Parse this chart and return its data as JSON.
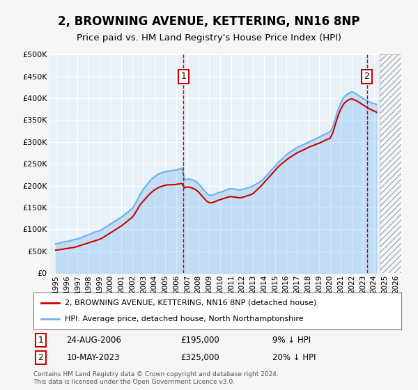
{
  "title": "2, BROWNING AVENUE, KETTERING, NN16 8NP",
  "subtitle": "Price paid vs. HM Land Registry's House Price Index (HPI)",
  "legend_line1": "2, BROWNING AVENUE, KETTERING, NN16 8NP (detached house)",
  "legend_line2": "HPI: Average price, detached house, North Northamptonshire",
  "footer1": "Contains HM Land Registry data © Crown copyright and database right 2024.",
  "footer2": "This data is licensed under the Open Government Licence v3.0.",
  "annotation1_label": "1",
  "annotation1_date": "24-AUG-2006",
  "annotation1_price": "£195,000",
  "annotation1_hpi": "9% ↓ HPI",
  "annotation2_label": "2",
  "annotation2_date": "10-MAY-2023",
  "annotation2_price": "£325,000",
  "annotation2_hpi": "20% ↓ HPI",
  "sale1_x": 2006.65,
  "sale1_y": 195000,
  "sale2_x": 2023.36,
  "sale2_y": 325000,
  "hpi_color": "#6ab4f0",
  "price_color": "#cc0000",
  "bg_plot": "#e8f0f8",
  "bg_figure": "#f5f5f5",
  "grid_color": "#ffffff",
  "ylim": [
    0,
    500000
  ],
  "xlim_start": 1994.5,
  "xlim_end": 2026.5,
  "hpi_years": [
    1995,
    1995.25,
    1995.5,
    1995.75,
    1996,
    1996.25,
    1996.5,
    1996.75,
    1997,
    1997.25,
    1997.5,
    1997.75,
    1998,
    1998.25,
    1998.5,
    1998.75,
    1999,
    1999.25,
    1999.5,
    1999.75,
    2000,
    2000.25,
    2000.5,
    2000.75,
    2001,
    2001.25,
    2001.5,
    2001.75,
    2002,
    2002.25,
    2002.5,
    2002.75,
    2003,
    2003.25,
    2003.5,
    2003.75,
    2004,
    2004.25,
    2004.5,
    2004.75,
    2005,
    2005.25,
    2005.5,
    2005.75,
    2006,
    2006.25,
    2006.5,
    2006.75,
    2007,
    2007.25,
    2007.5,
    2007.75,
    2008,
    2008.25,
    2008.5,
    2008.75,
    2009,
    2009.25,
    2009.5,
    2009.75,
    2010,
    2010.25,
    2010.5,
    2010.75,
    2011,
    2011.25,
    2011.5,
    2011.75,
    2012,
    2012.25,
    2012.5,
    2012.75,
    2013,
    2013.25,
    2013.5,
    2013.75,
    2014,
    2014.25,
    2014.5,
    2014.75,
    2015,
    2015.25,
    2015.5,
    2015.75,
    2016,
    2016.25,
    2016.5,
    2016.75,
    2017,
    2017.25,
    2017.5,
    2017.75,
    2018,
    2018.25,
    2018.5,
    2018.75,
    2019,
    2019.25,
    2019.5,
    2019.75,
    2020,
    2020.25,
    2020.5,
    2020.75,
    2021,
    2021.25,
    2021.5,
    2021.75,
    2022,
    2022.25,
    2022.5,
    2022.75,
    2023,
    2023.25,
    2023.5,
    2023.75,
    2024,
    2024.25
  ],
  "hpi_values": [
    67000,
    68000,
    69500,
    71000,
    72000,
    73500,
    75000,
    77000,
    78000,
    80000,
    83000,
    86000,
    88000,
    90000,
    93000,
    95000,
    97000,
    100000,
    104000,
    108000,
    112000,
    116000,
    120000,
    124000,
    128000,
    133000,
    138000,
    143000,
    148000,
    158000,
    170000,
    182000,
    192000,
    200000,
    208000,
    215000,
    220000,
    225000,
    228000,
    230000,
    232000,
    233000,
    234000,
    235000,
    236000,
    238000,
    240000,
    213000,
    215000,
    215000,
    213000,
    210000,
    205000,
    198000,
    190000,
    183000,
    178000,
    178000,
    180000,
    183000,
    185000,
    187000,
    190000,
    192000,
    193000,
    192000,
    191000,
    190000,
    191000,
    193000,
    195000,
    197000,
    200000,
    203000,
    207000,
    211000,
    217000,
    224000,
    231000,
    238000,
    245000,
    252000,
    258000,
    264000,
    270000,
    275000,
    279000,
    283000,
    287000,
    290000,
    293000,
    296000,
    299000,
    302000,
    305000,
    308000,
    311000,
    314000,
    317000,
    320000,
    323000,
    334000,
    355000,
    375000,
    390000,
    402000,
    408000,
    412000,
    415000,
    412000,
    408000,
    404000,
    400000,
    396000,
    393000,
    390000,
    388000,
    386000
  ],
  "price_years": [
    1995.0,
    1995.25,
    1995.5,
    1995.75,
    1996.0,
    1996.25,
    1996.5,
    1996.75,
    1997.0,
    1997.25,
    1997.5,
    1997.75,
    1998.0,
    1998.25,
    1998.5,
    1998.75,
    1999.0,
    1999.25,
    1999.5,
    1999.75,
    2000.0,
    2000.25,
    2000.5,
    2000.75,
    2001.0,
    2001.25,
    2001.5,
    2001.75,
    2002.0,
    2002.25,
    2002.5,
    2002.75,
    2003.0,
    2003.25,
    2003.5,
    2003.75,
    2004.0,
    2004.25,
    2004.5,
    2004.75,
    2005.0,
    2005.25,
    2005.5,
    2005.75,
    2006.0,
    2006.25,
    2006.5,
    2006.75,
    2007.0,
    2007.25,
    2007.5,
    2007.75,
    2008.0,
    2008.25,
    2008.5,
    2008.75,
    2009.0,
    2009.25,
    2009.5,
    2009.75,
    2010.0,
    2010.25,
    2010.5,
    2010.75,
    2011.0,
    2011.25,
    2011.5,
    2011.75,
    2012.0,
    2012.25,
    2012.5,
    2012.75,
    2013.0,
    2013.25,
    2013.5,
    2013.75,
    2014.0,
    2014.25,
    2014.5,
    2014.75,
    2015.0,
    2015.25,
    2015.5,
    2015.75,
    2016.0,
    2016.25,
    2016.5,
    2016.75,
    2017.0,
    2017.25,
    2017.5,
    2017.75,
    2018.0,
    2018.25,
    2018.5,
    2018.75,
    2019.0,
    2019.25,
    2019.5,
    2019.75,
    2020.0,
    2020.25,
    2020.5,
    2020.75,
    2021.0,
    2021.25,
    2021.5,
    2021.75,
    2022.0,
    2022.25,
    2022.5,
    2022.75,
    2023.0,
    2023.25,
    2023.5,
    2023.75,
    2024.0,
    2024.25
  ],
  "price_values": [
    52000,
    53000,
    54000,
    55000,
    56000,
    57000,
    58000,
    59000,
    61000,
    63000,
    65000,
    67000,
    69000,
    71000,
    73000,
    75000,
    77000,
    80000,
    84000,
    88000,
    92000,
    96000,
    100000,
    104000,
    108000,
    113000,
    118000,
    123000,
    128000,
    137000,
    148000,
    158000,
    165000,
    172000,
    179000,
    185000,
    190000,
    194000,
    197000,
    199000,
    201000,
    202000,
    202000,
    202000,
    203000,
    204000,
    205000,
    195000,
    197000,
    196000,
    194000,
    191000,
    186000,
    179000,
    172000,
    165000,
    161000,
    161000,
    163000,
    166000,
    168000,
    170000,
    172000,
    174000,
    175000,
    174000,
    173000,
    172000,
    173000,
    175000,
    177000,
    179000,
    182000,
    188000,
    194000,
    200000,
    207000,
    214000,
    221000,
    228000,
    235000,
    242000,
    248000,
    253000,
    258000,
    263000,
    267000,
    271000,
    275000,
    278000,
    281000,
    284000,
    287000,
    290000,
    292000,
    295000,
    297000,
    300000,
    303000,
    306000,
    308000,
    320000,
    341000,
    361000,
    376000,
    387000,
    393000,
    397000,
    399000,
    396000,
    393000,
    389000,
    385000,
    381000,
    377000,
    374000,
    371000,
    368000
  ],
  "xticks": [
    1995,
    1996,
    1997,
    1998,
    1999,
    2000,
    2001,
    2002,
    2003,
    2004,
    2005,
    2006,
    2007,
    2008,
    2009,
    2010,
    2011,
    2012,
    2013,
    2014,
    2015,
    2016,
    2017,
    2018,
    2019,
    2020,
    2021,
    2022,
    2023,
    2024,
    2025,
    2026
  ],
  "yticks": [
    0,
    50000,
    100000,
    150000,
    200000,
    250000,
    300000,
    350000,
    400000,
    450000,
    500000
  ]
}
